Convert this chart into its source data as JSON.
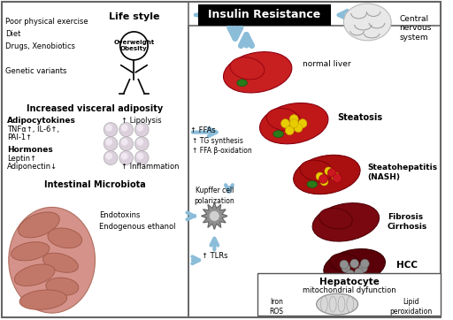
{
  "title": "Insulin Resistance",
  "bg_color": "#ffffff",
  "lifestyle_title": "Life style",
  "overweight_label": "Overweight\nObesity",
  "visceral_title": "Increased visceral adiposity",
  "adipocytokines_label": "Adipocytokines",
  "lipolysis_label": "↑ Lipolysis",
  "hormones_label": "Hormones",
  "inflammation_label": "↑ Inflammation",
  "microbiota_title": "Intestinal Microbiota",
  "ffas_label": "↑ FFAs",
  "tg_label": "↑ TG synthesis\n↑ FFA β-oxidation",
  "kupffer_label": "Kupffer cell\npolarization",
  "tlrs_label": "↑ TLRs",
  "normal_liver_label": "normal liver",
  "steatosis_label": "Steatosis",
  "steatohepatitis_label": "Steatohepatitis\n(NASH)",
  "fibrosis_label": "Fibrosis\nCirrhosis",
  "hcc_label": "HCC",
  "hepatocyte_label": "Hepatocyte",
  "mito_label": "mitochondrial dyfunction",
  "iron_label": "Iron\nROS",
  "lipid_label": "Lipid\nperoxidation",
  "cns_label": "Central\nnervous\nsystem",
  "arrow_color": "#8BBDD9",
  "liver_red": "#cc1020",
  "liver_dark": "#8a0010",
  "liver_darker": "#5a0008",
  "green": "#2a7a1a",
  "yellow": "#e8c800",
  "grey_cell": "#888888"
}
